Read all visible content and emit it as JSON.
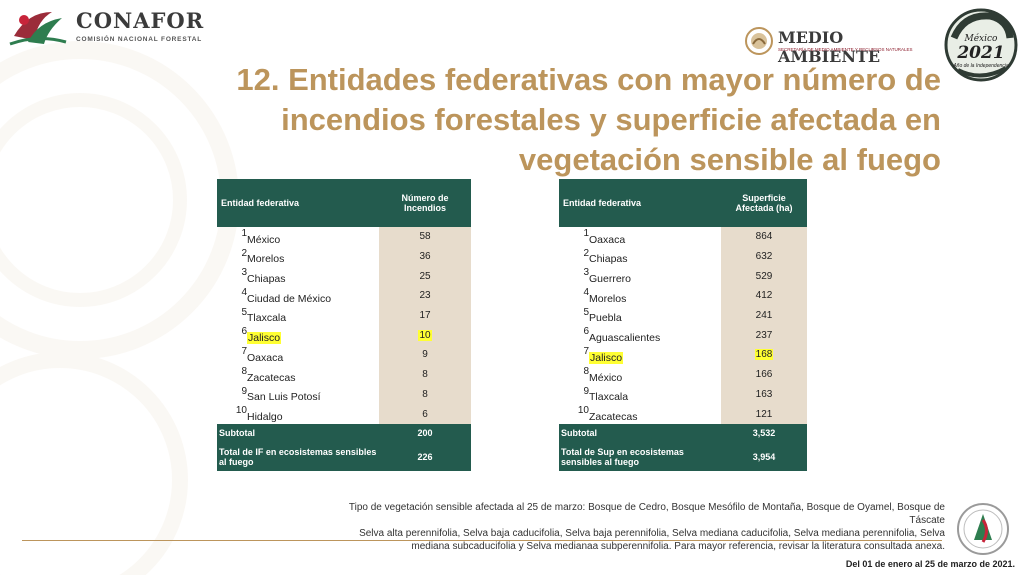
{
  "header": {
    "org_name": "CONAFOR",
    "org_subtitle": "COMISIÓN NACIONAL FORESTAL",
    "ministry_name": "MEDIO AMBIENTE",
    "ministry_subtitle": "SECRETARÍA DE MEDIO AMBIENTE Y RECURSOS NATURALES",
    "badge_line1": "México",
    "badge_year": "2021",
    "badge_line3": "Año de la Independencia"
  },
  "title": {
    "line1": "12. Entidades federativas con mayor número de",
    "line2": "incendios forestales y superficie afectada en",
    "line3": "vegetación sensible al fuego"
  },
  "colors": {
    "accent": "#bc955c",
    "header_green": "#235b4e",
    "cell_beige": "#e7dccc",
    "highlight": "#ffff33"
  },
  "table_incendios": {
    "col_entity": "Entidad federativa",
    "col_value": "Número de Incendios",
    "rows": [
      {
        "rank": "1",
        "name": "México",
        "value": "58"
      },
      {
        "rank": "2",
        "name": "Morelos",
        "value": "36"
      },
      {
        "rank": "3",
        "name": "Chiapas",
        "value": "25"
      },
      {
        "rank": "4",
        "name": "Ciudad de México",
        "value": "23"
      },
      {
        "rank": "5",
        "name": "Tlaxcala",
        "value": "17"
      },
      {
        "rank": "6",
        "name": "Jalisco",
        "value": "10",
        "highlight": true
      },
      {
        "rank": "7",
        "name": "Oaxaca",
        "value": "9"
      },
      {
        "rank": "8",
        "name": "Zacatecas",
        "value": "8"
      },
      {
        "rank": "9",
        "name": "San Luis Potosí",
        "value": "8"
      },
      {
        "rank": "10",
        "name": "Hidalgo",
        "value": "6"
      }
    ],
    "subtotal_label": "Subtotal",
    "subtotal_value": "200",
    "total_label": "Total de IF en ecosistemas sensibles al fuego",
    "total_value": "226"
  },
  "table_superficie": {
    "col_entity": "Entidad federativa",
    "col_value": "Superficie Afectada (ha)",
    "rows": [
      {
        "rank": "1",
        "name": "Oaxaca",
        "value": "864"
      },
      {
        "rank": "2",
        "name": "Chiapas",
        "value": "632"
      },
      {
        "rank": "3",
        "name": "Guerrero",
        "value": "529"
      },
      {
        "rank": "4",
        "name": "Morelos",
        "value": "412"
      },
      {
        "rank": "5",
        "name": "Puebla",
        "value": "241"
      },
      {
        "rank": "6",
        "name": "Aguascalientes",
        "value": "237"
      },
      {
        "rank": "7",
        "name": "Jalisco",
        "value": "168",
        "highlight": true
      },
      {
        "rank": "8",
        "name": "México",
        "value": "166"
      },
      {
        "rank": "9",
        "name": "Tlaxcala",
        "value": "163"
      },
      {
        "rank": "10",
        "name": "Zacatecas",
        "value": "121"
      }
    ],
    "subtotal_label": "Subtotal",
    "subtotal_value": "3,532",
    "total_label": "Total de Sup en ecosistemas sensibles al fuego",
    "total_value": "3,954"
  },
  "note": {
    "line1": "Tipo de vegetación sensible afectada al 25 de marzo: Bosque de Cedro, Bosque Mesófilo de Montaña, Bosque de Oyamel, Bosque de",
    "line2": "Táscate",
    "line3": "Selva alta perennifolia, Selva baja caducifolia, Selva baja perennifolia, Selva mediana caducifolia, Selva mediana perennifolia, Selva",
    "line4": "mediana subcaducifolia y Selva medianaa subperennifolia. Para mayor referencia, revisar la literatura consultada anexa."
  },
  "date_range": "Del 01 de enero al 25 de marzo de 2021.",
  "icons": [
    "conafor-logo-icon",
    "mexico-shield-icon",
    "serpent-2021-icon",
    "conafor-seal-icon"
  ]
}
